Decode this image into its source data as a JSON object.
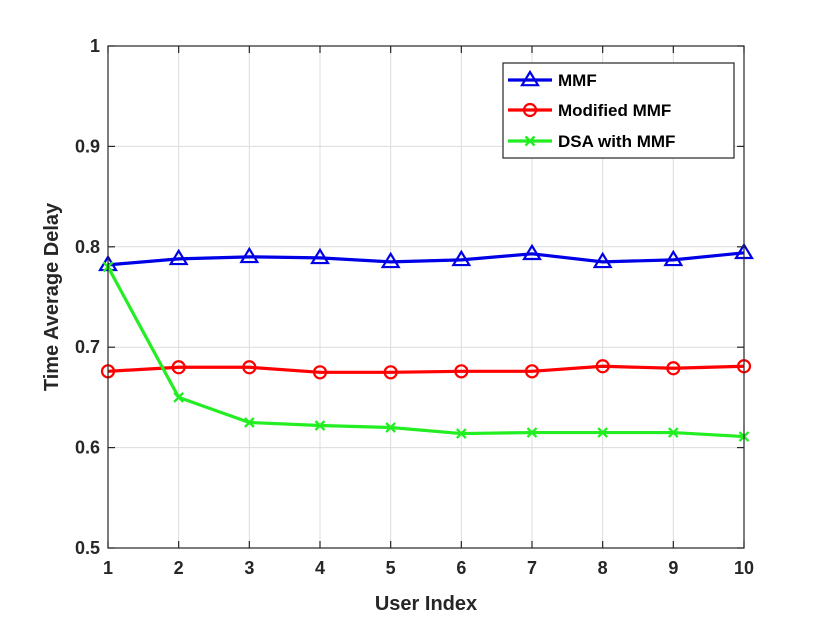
{
  "chart_data": {
    "type": "line",
    "title": "",
    "xlabel": "User Index",
    "ylabel": "Time Average Delay",
    "x": [
      1,
      2,
      3,
      4,
      5,
      6,
      7,
      8,
      9,
      10
    ],
    "xlim": [
      1,
      10
    ],
    "ylim": [
      0.5,
      1
    ],
    "xticks": [
      "1",
      "2",
      "3",
      "4",
      "5",
      "6",
      "7",
      "8",
      "9",
      "10"
    ],
    "yticks": [
      "0.5",
      "0.6",
      "0.7",
      "0.8",
      "0.9",
      "1"
    ],
    "grid": true,
    "legend_position": "top-right",
    "series": [
      {
        "name": "MMF",
        "color": "#0000e6",
        "marker": "triangle",
        "values": [
          0.782,
          0.788,
          0.79,
          0.789,
          0.785,
          0.787,
          0.793,
          0.785,
          0.787,
          0.794
        ]
      },
      {
        "name": "Modified MMF",
        "color": "#ff0000",
        "marker": "circle",
        "values": [
          0.676,
          0.68,
          0.68,
          0.675,
          0.675,
          0.676,
          0.676,
          0.681,
          0.679,
          0.681
        ]
      },
      {
        "name": "DSA with MMF",
        "color": "#22ee22",
        "marker": "x",
        "values": [
          0.78,
          0.65,
          0.625,
          0.622,
          0.62,
          0.614,
          0.615,
          0.615,
          0.615,
          0.611
        ]
      }
    ]
  }
}
